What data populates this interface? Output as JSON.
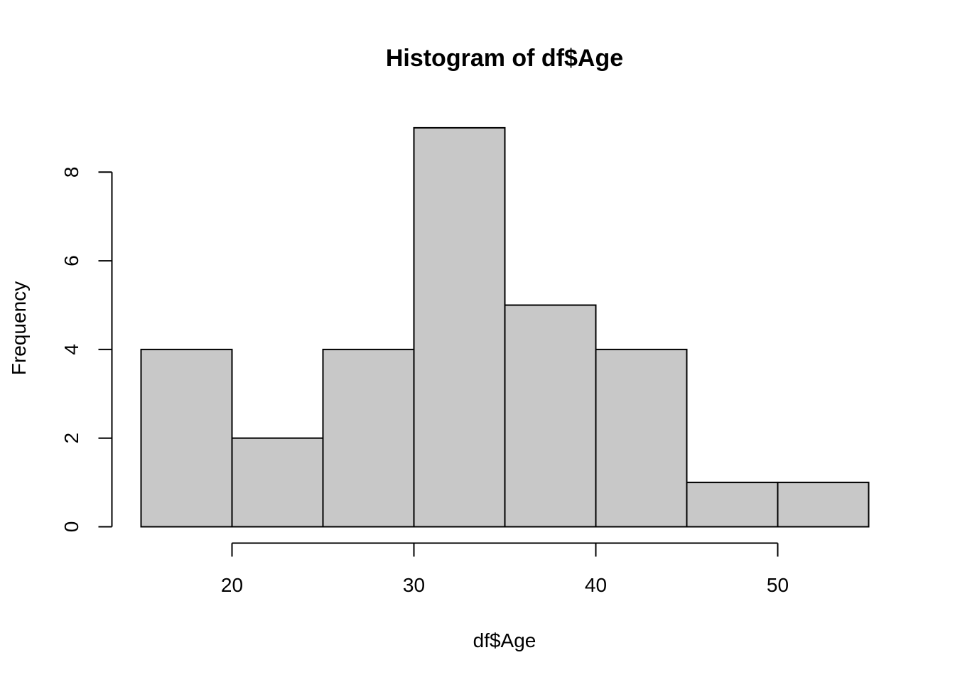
{
  "chart_data": {
    "type": "bar",
    "title": "Histogram of df$Age",
    "xlabel": "df$Age",
    "ylabel": "Frequency",
    "bins": [
      {
        "start": 15,
        "end": 20,
        "count": 4
      },
      {
        "start": 20,
        "end": 25,
        "count": 2
      },
      {
        "start": 25,
        "end": 30,
        "count": 4
      },
      {
        "start": 30,
        "end": 35,
        "count": 9
      },
      {
        "start": 35,
        "end": 40,
        "count": 5
      },
      {
        "start": 40,
        "end": 45,
        "count": 4
      },
      {
        "start": 45,
        "end": 50,
        "count": 1
      },
      {
        "start": 50,
        "end": 55,
        "count": 1
      }
    ],
    "x_ticks": [
      20,
      30,
      40,
      50
    ],
    "y_ticks": [
      0,
      2,
      4,
      6,
      8
    ],
    "xlim": [
      15,
      55
    ],
    "ylim": [
      0,
      9
    ],
    "grid": false,
    "bar_color": "#c8c8c8",
    "edge_color": "#000000"
  }
}
